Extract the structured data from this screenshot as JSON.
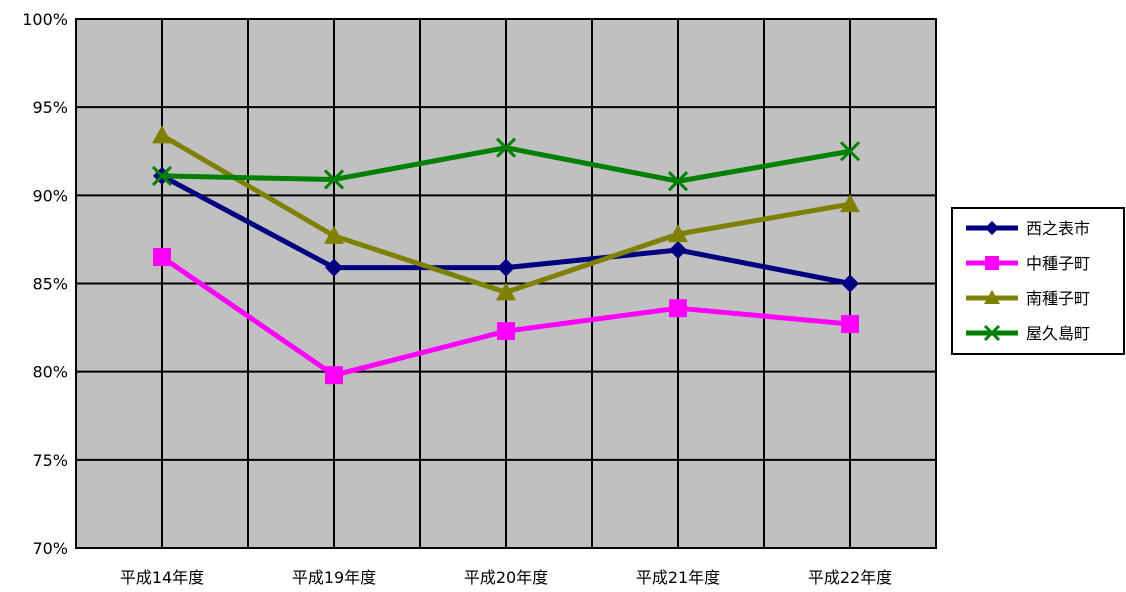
{
  "chart_data": {
    "type": "line",
    "title": "",
    "xlabel": "",
    "ylabel": "",
    "categories": [
      "平成14年度",
      "平成19年度",
      "平成20年度",
      "平成21年度",
      "平成22年度"
    ],
    "ylim": [
      70,
      100
    ],
    "yticks": [
      70,
      75,
      80,
      85,
      90,
      95,
      100
    ],
    "ytick_labels": [
      "70%",
      "75%",
      "80%",
      "85%",
      "90%",
      "95%",
      "100%"
    ],
    "grid": true,
    "legend_position": "right",
    "plot_background": "#C0C0C0",
    "series": [
      {
        "name": "西之表市",
        "values": [
          91.1,
          85.9,
          85.9,
          86.9,
          85.0
        ],
        "color": "#000080",
        "marker": "diamond"
      },
      {
        "name": "中種子町",
        "values": [
          86.5,
          79.8,
          82.3,
          83.6,
          82.7
        ],
        "color": "#FF00FF",
        "marker": "square"
      },
      {
        "name": "南種子町",
        "values": [
          93.4,
          87.7,
          84.5,
          87.8,
          89.5
        ],
        "color": "#808000",
        "marker": "triangle"
      },
      {
        "name": "屋久島町",
        "values": [
          91.1,
          90.9,
          92.7,
          90.8,
          92.5
        ],
        "color": "#008000",
        "marker": "x"
      }
    ]
  }
}
